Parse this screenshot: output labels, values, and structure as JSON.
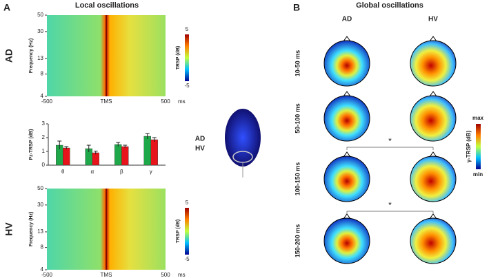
{
  "panel_a": {
    "letter": "A",
    "title": "Local oscillations"
  },
  "chart_data": [
    {
      "type": "heatmap",
      "row_label": "AD",
      "ylabel": "Frequency (Hz)",
      "ylim": [
        4,
        50
      ],
      "log_y": true,
      "yticks": [
        4,
        8,
        13,
        30,
        50
      ],
      "xlim": [
        -500,
        500
      ],
      "xticks": [
        -500,
        {
          "value": 0,
          "label": "TMS"
        },
        500
      ],
      "xunit": "ms",
      "colorbar": {
        "label": "TRSP (dB)",
        "ticks": [
          5,
          -5
        ]
      }
    },
    {
      "type": "bar",
      "ylabel": "Pz-TRSP (dB)",
      "categories": [
        "θ",
        "α",
        "β",
        "γ"
      ],
      "series": [
        {
          "name": "AD",
          "color": "#e8141b",
          "values": [
            1.25,
            0.9,
            1.35,
            1.85
          ],
          "errors": [
            0.1,
            0.12,
            0.1,
            0.15
          ]
        },
        {
          "name": "HV",
          "color": "#1fa84a",
          "values": [
            1.45,
            1.2,
            1.5,
            2.1
          ],
          "errors": [
            0.3,
            0.25,
            0.15,
            0.2
          ]
        }
      ],
      "ylim": [
        0,
        3
      ],
      "yticks": [
        0,
        1,
        2,
        3
      ]
    },
    {
      "type": "heatmap",
      "row_label": "HV",
      "ylabel": "Frequency (Hz)",
      "ylim": [
        4,
        50
      ],
      "log_y": true,
      "yticks": [
        4,
        8,
        13,
        30,
        50
      ],
      "xlim": [
        -500,
        500
      ],
      "xticks": [
        -500,
        {
          "value": 0,
          "label": "TMS"
        },
        500
      ],
      "xunit": "ms",
      "colorbar": {
        "label": "TRSP (dB)",
        "ticks": [
          5,
          -5
        ]
      }
    }
  ],
  "panel_b": {
    "letter": "B",
    "title": "Global oscillations",
    "columns": [
      "AD",
      "HV"
    ],
    "rows": [
      "10-50 ms",
      "50-100 ms",
      "100-150 ms",
      "150-200 ms"
    ],
    "significance": [
      "*",
      "*"
    ],
    "colorbar": {
      "label": "γ-TRSP (dB)",
      "max": "max",
      "min": "min"
    }
  }
}
